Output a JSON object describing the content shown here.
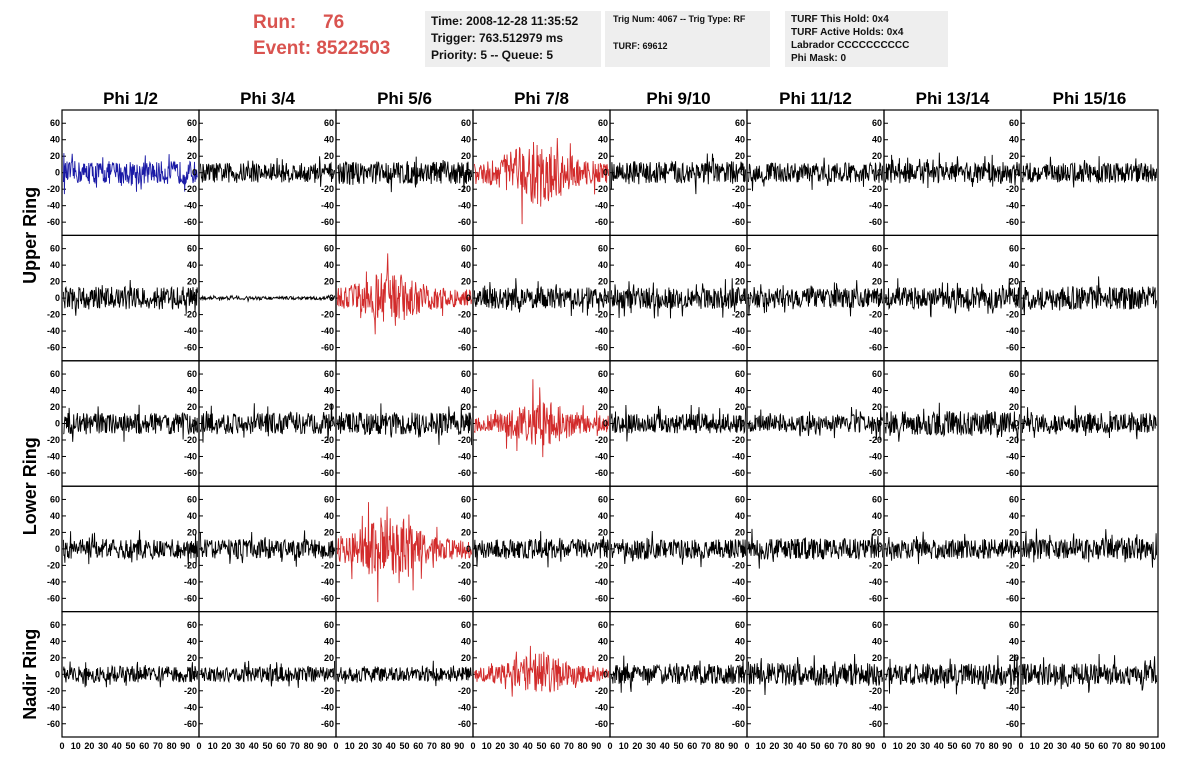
{
  "header": {
    "run_label": "Run:",
    "run_value": "76",
    "event_label": "Event:",
    "event_value": "8522503"
  },
  "panel_time": {
    "time": "Time: 2008-12-28 11:35:52",
    "trigger": "Trigger: 763.512979 ms",
    "priority": "Priority: 5 -- Queue: 5"
  },
  "panel_trig": {
    "trig": "Trig Num: 4067 -- Trig Type: RF",
    "turf": "TURF: 69612"
  },
  "panel_turf": {
    "hold": "TURF This Hold: 0x4",
    "active": "TURF Active Holds: 0x4",
    "labrador": "Labrador CCCCCCCCCC",
    "phimask": "Phi Mask: 0"
  },
  "colors": {
    "default_trace": "#000000",
    "triggered_trace": "#d22b2b",
    "selected_trace": "#1a1aa6",
    "info_bg": "#eeeeee",
    "header_text": "#d9534f"
  },
  "chart_data": {
    "type": "line",
    "title": "",
    "columns": [
      "Phi 1/2",
      "Phi 3/4",
      "Phi 5/6",
      "Phi 7/8",
      "Phi 9/10",
      "Phi 11/12",
      "Phi 13/14",
      "Phi 15/16"
    ],
    "rows": [
      "Upper Ring",
      "",
      "Lower Ring",
      "",
      "Nadir Ring"
    ],
    "row_label_positions": "Upper Ring spans rows 1-2, Lower Ring spans rows 3-4, Nadir Ring is row 5",
    "xlim": [
      0,
      100
    ],
    "ylim": [
      -70,
      70
    ],
    "y_ticks": [
      -60,
      -40,
      -20,
      0,
      20,
      40,
      60
    ],
    "x_ticks": [
      0,
      10,
      20,
      30,
      40,
      50,
      60,
      70,
      80,
      90,
      100
    ],
    "x_tick_text_per_panel": "0 10 20 30 40 50 60 70 80 90 100",
    "n_samples": 260,
    "panels": [
      [
        {
          "style": "blue",
          "amp": 14
        },
        {
          "style": "black",
          "amp": 12
        },
        {
          "style": "black",
          "amp": 14
        },
        {
          "style": "red",
          "amp": 22,
          "burst": true
        },
        {
          "style": "black",
          "amp": 14
        },
        {
          "style": "black",
          "amp": 12
        },
        {
          "style": "black",
          "amp": 13
        },
        {
          "style": "black",
          "amp": 12
        }
      ],
      [
        {
          "style": "black",
          "amp": 14
        },
        {
          "style": "black",
          "amp": 2
        },
        {
          "style": "red",
          "amp": 18,
          "burst": true
        },
        {
          "style": "black",
          "amp": 13
        },
        {
          "style": "black",
          "amp": 13
        },
        {
          "style": "black",
          "amp": 12
        },
        {
          "style": "black",
          "amp": 13
        },
        {
          "style": "black",
          "amp": 14
        }
      ],
      [
        {
          "style": "black",
          "amp": 13
        },
        {
          "style": "black",
          "amp": 13
        },
        {
          "style": "black",
          "amp": 14
        },
        {
          "style": "red",
          "amp": 16,
          "burst": true
        },
        {
          "style": "black",
          "amp": 12
        },
        {
          "style": "black",
          "amp": 11
        },
        {
          "style": "black",
          "amp": 15
        },
        {
          "style": "black",
          "amp": 12
        }
      ],
      [
        {
          "style": "black",
          "amp": 12
        },
        {
          "style": "black",
          "amp": 12
        },
        {
          "style": "red",
          "amp": 22,
          "burst": true
        },
        {
          "style": "black",
          "amp": 12
        },
        {
          "style": "black",
          "amp": 12
        },
        {
          "style": "black",
          "amp": 13
        },
        {
          "style": "black",
          "amp": 12
        },
        {
          "style": "black",
          "amp": 13
        }
      ],
      [
        {
          "style": "black",
          "amp": 10
        },
        {
          "style": "black",
          "amp": 9
        },
        {
          "style": "black",
          "amp": 9
        },
        {
          "style": "red",
          "amp": 14,
          "burst": true
        },
        {
          "style": "black",
          "amp": 12
        },
        {
          "style": "black",
          "amp": 14
        },
        {
          "style": "black",
          "amp": 13
        },
        {
          "style": "black",
          "amp": 13
        }
      ]
    ]
  }
}
